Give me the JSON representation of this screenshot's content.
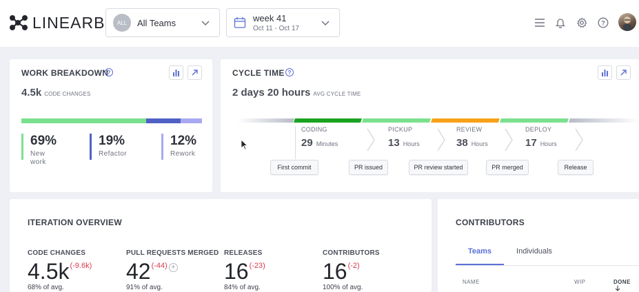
{
  "header": {
    "brand": {
      "prefix": "LINEAR",
      "suffix": "B"
    },
    "team_selector": {
      "badge": "ALL",
      "label": "All Teams"
    },
    "week_selector": {
      "title": "week 41",
      "range": "Oct 11 - Oct 17"
    },
    "icons": [
      "menu-icon",
      "bell-icon",
      "gear-icon",
      "help-icon",
      "user-avatar"
    ]
  },
  "work_breakdown": {
    "title": "WORK BREAKDOWN",
    "total_value": "4.5k",
    "total_label": "CODE CHANGES",
    "segments": [
      {
        "pct": "69%",
        "label": "New work",
        "share": 0.69,
        "color": "#7be08e"
      },
      {
        "pct": "19%",
        "label": "Refactor",
        "share": 0.19,
        "color": "#5060c4"
      },
      {
        "pct": "12%",
        "label": "Rework",
        "share": 0.12,
        "color": "#a8a9f2"
      }
    ]
  },
  "cycle_time": {
    "title": "CYCLE TIME",
    "total_value": "2 days 20 hours",
    "total_label": "AVG CYCLE TIME",
    "colors": {
      "coding": "#1aa321",
      "pickup": "#7be08e",
      "review": "#f7a11a",
      "deploy": "#7be08e",
      "faded": "#c9ccd6"
    },
    "stages": [
      {
        "name": "CODING",
        "value": "29",
        "unit": "Minutes"
      },
      {
        "name": "PICKUP",
        "value": "13",
        "unit": "Hours"
      },
      {
        "name": "REVIEW",
        "value": "38",
        "unit": "Hours"
      },
      {
        "name": "DEPLOY",
        "value": "17",
        "unit": "Hours"
      }
    ],
    "events": [
      "First commit",
      "PR issued",
      "PR review started",
      "PR merged",
      "Release"
    ]
  },
  "iteration_overview": {
    "title": "ITERATION OVERVIEW",
    "stats": [
      {
        "label": "CODE CHANGES",
        "value": "4.5k",
        "delta": "(-9.6k)",
        "avg": "68% of avg."
      },
      {
        "label": "PULL REQUESTS MERGED",
        "value": "42",
        "delta": "(-44)",
        "avg": "91% of avg."
      },
      {
        "label": "RELEASES",
        "value": "16",
        "delta": "(-23)",
        "avg": "84% of avg."
      },
      {
        "label": "CONTRIBUTORS",
        "value": "16",
        "delta": "(-2)",
        "avg": "100% of avg."
      }
    ]
  },
  "contributors": {
    "title": "CONTRIBUTORS",
    "tabs": [
      "Teams",
      "Individuals"
    ],
    "columns": [
      "NAME",
      "WIP",
      "DONE"
    ]
  },
  "accent_color": "#5b6fd6"
}
